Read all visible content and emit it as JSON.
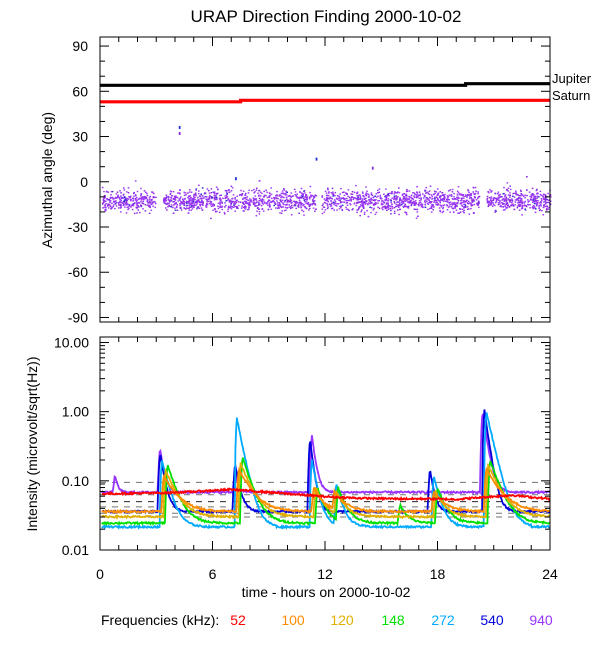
{
  "chart_data": [
    {
      "type": "scatter",
      "title": "URAP Direction Finding  2000-10-02",
      "xlabel": "",
      "ylabel": "Azimuthal angle (deg)",
      "xlim": [
        0,
        24
      ],
      "ylim": [
        -93,
        96
      ],
      "xticks": [
        0,
        6,
        12,
        18,
        24
      ],
      "yticks": [
        90,
        60,
        30,
        0,
        -30,
        -60,
        -90
      ],
      "ytick_labels": [
        "90",
        "60",
        "30",
        "0",
        "-30",
        "-60",
        "-90"
      ],
      "reference_lines": [
        {
          "name": "Jupiter",
          "color": "#000000",
          "x": [
            0,
            19.5,
            19.5,
            24
          ],
          "y": [
            64,
            64,
            65,
            65
          ]
        },
        {
          "name": "Saturn",
          "color": "#ff0000",
          "x": [
            0,
            7.5,
            7.5,
            24
          ],
          "y": [
            53,
            53,
            54,
            54
          ]
        }
      ],
      "scatter_band": {
        "x_start": 0.1,
        "x_end": 24,
        "center": -12,
        "spread": 9,
        "gaps": [
          [
            2.95,
            3.35
          ],
          [
            11.5,
            11.8
          ],
          [
            20.2,
            20.6
          ]
        ]
      },
      "outliers": [
        {
          "x": 4.2,
          "y": 33,
          "color": "#8a2be2"
        },
        {
          "x": 4.2,
          "y": 37,
          "color": "#2030d0"
        },
        {
          "x": 11.5,
          "y": 16,
          "color": "#2030d0"
        },
        {
          "x": 14.5,
          "y": 10,
          "color": "#8a2be2"
        },
        {
          "x": 7.2,
          "y": 3,
          "color": "#2030d0"
        }
      ]
    },
    {
      "type": "line",
      "xlabel": "time - hours on 2000-10-02",
      "ylabel": "Intensity (microvolt/sqrt(Hz))",
      "xlim": [
        0,
        24
      ],
      "ylim": [
        0.01,
        12
      ],
      "yscale": "log",
      "xticks": [
        0,
        6,
        12,
        18,
        24
      ],
      "xtick_labels": [
        "0",
        "6",
        "12",
        "18",
        "24"
      ],
      "yticks": [
        0.01,
        0.1,
        1.0,
        10.0
      ],
      "ytick_labels": [
        "0.01",
        "0.10",
        "1.00",
        "10.00"
      ],
      "baseline_style": {
        "dash": "6,6"
      },
      "series": [
        {
          "name": "52",
          "color": "#ff0000",
          "baseline": 0.063,
          "x": [
            0,
            2,
            3.5,
            5,
            7,
            8.5,
            10,
            11,
            12.5,
            14,
            16,
            17.5,
            19,
            20.5,
            22,
            23,
            24
          ],
          "y": [
            0.065,
            0.066,
            0.067,
            0.07,
            0.075,
            0.07,
            0.065,
            0.062,
            0.058,
            0.056,
            0.055,
            0.055,
            0.054,
            0.058,
            0.062,
            0.058,
            0.055
          ]
        },
        {
          "name": "100",
          "color": "#ff8c00",
          "baseline": 0.05,
          "events": [
            {
              "t": 3.4,
              "peak": 0.12,
              "decay": 1.4
            },
            {
              "t": 7.4,
              "peak": 0.15,
              "decay": 1.4
            },
            {
              "t": 11.4,
              "peak": 0.08,
              "decay": 1.0
            },
            {
              "t": 12.5,
              "peak": 0.07,
              "decay": 1.2
            },
            {
              "t": 17.8,
              "peak": 0.07,
              "decay": 1.2
            },
            {
              "t": 20.6,
              "peak": 0.15,
              "decay": 1.5
            }
          ]
        },
        {
          "name": "120",
          "color": "#e0b000",
          "baseline": 0.042,
          "events": [
            {
              "t": 3.5,
              "peak": 0.14,
              "decay": 1.2
            },
            {
              "t": 7.5,
              "peak": 0.18,
              "decay": 1.2
            },
            {
              "t": 11.5,
              "peak": 0.08,
              "decay": 0.9
            },
            {
              "t": 12.6,
              "peak": 0.07,
              "decay": 1.0
            },
            {
              "t": 17.9,
              "peak": 0.07,
              "decay": 1.0
            },
            {
              "t": 20.7,
              "peak": 0.17,
              "decay": 1.3
            }
          ]
        },
        {
          "name": "148",
          "color": "#00e000",
          "baseline": 0.034,
          "events": [
            {
              "t": 3.6,
              "peak": 0.17,
              "decay": 1.0
            },
            {
              "t": 7.6,
              "peak": 0.22,
              "decay": 1.0
            },
            {
              "t": 11.6,
              "peak": 0.08,
              "decay": 0.8
            },
            {
              "t": 12.7,
              "peak": 0.08,
              "decay": 0.9
            },
            {
              "t": 16.0,
              "peak": 0.045,
              "decay": 0.8
            },
            {
              "t": 18.0,
              "peak": 0.08,
              "decay": 0.9
            },
            {
              "t": 20.8,
              "peak": 0.2,
              "decay": 1.1
            }
          ]
        },
        {
          "name": "272",
          "color": "#00aaff",
          "baseline": 0.03,
          "events": [
            {
              "t": 3.3,
              "peak": 0.2,
              "decay": 0.8
            },
            {
              "t": 7.3,
              "peak": 0.8,
              "decay": 0.7
            },
            {
              "t": 11.3,
              "peak": 0.2,
              "decay": 0.6
            },
            {
              "t": 12.6,
              "peak": 0.09,
              "decay": 0.7
            },
            {
              "t": 17.8,
              "peak": 0.12,
              "decay": 0.7
            },
            {
              "t": 20.6,
              "peak": 1.0,
              "decay": 0.8
            }
          ]
        },
        {
          "name": "540",
          "color": "#0000dd",
          "baseline": 0.05,
          "events": [
            {
              "t": 3.2,
              "peak": 0.25,
              "decay": 0.5
            },
            {
              "t": 7.2,
              "peak": 0.18,
              "decay": 0.5
            },
            {
              "t": 11.2,
              "peak": 0.4,
              "decay": 0.4
            },
            {
              "t": 17.6,
              "peak": 0.15,
              "decay": 0.4
            },
            {
              "t": 20.5,
              "peak": 1.05,
              "decay": 0.5
            }
          ]
        },
        {
          "name": "940",
          "color": "#9933ff",
          "baseline": 0.095,
          "events": [
            {
              "t": 0.8,
              "peak": 0.12,
              "decay": 0.3
            },
            {
              "t": 3.2,
              "peak": 0.3,
              "decay": 0.4
            },
            {
              "t": 7.2,
              "peak": 0.14,
              "decay": 0.3
            },
            {
              "t": 11.3,
              "peak": 0.45,
              "decay": 0.4
            },
            {
              "t": 20.4,
              "peak": 1.0,
              "decay": 0.5
            }
          ]
        }
      ]
    }
  ],
  "legend": {
    "title": "Frequencies (kHz):",
    "entries": [
      {
        "label": "52",
        "color": "#ff0000"
      },
      {
        "label": "100",
        "color": "#ff8c00"
      },
      {
        "label": "120",
        "color": "#e0b000"
      },
      {
        "label": "148",
        "color": "#00e000"
      },
      {
        "label": "272",
        "color": "#00aaff"
      },
      {
        "label": "540",
        "color": "#0000dd"
      },
      {
        "label": "940",
        "color": "#9933ff"
      }
    ]
  },
  "labels": {
    "jupiter": "Jupiter",
    "saturn": "Saturn"
  }
}
